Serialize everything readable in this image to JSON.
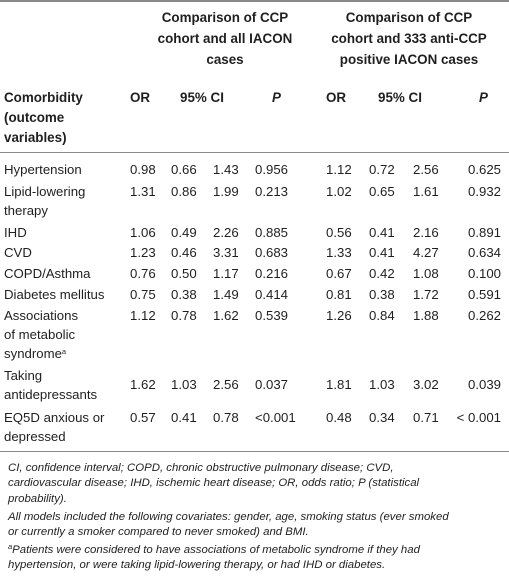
{
  "group_headers": {
    "left": [
      "Comparison of CCP",
      "cohort and all IACON",
      "cases"
    ],
    "right": [
      "Comparison of CCP",
      "cohort and 333 anti-CCP",
      "positive IACON cases"
    ]
  },
  "column_headers": {
    "comorbidity": [
      "Comorbidity",
      "(outcome",
      "variables)"
    ],
    "or": "OR",
    "ci": "95% CI",
    "p": "P"
  },
  "rows": [
    {
      "label": [
        "Hypertension"
      ],
      "l": [
        "0.98",
        "0.66",
        "1.43",
        "0.956"
      ],
      "r": [
        "1.12",
        "0.72",
        "2.56",
        "0.625"
      ]
    },
    {
      "label": [
        "Lipid-lowering",
        "therapy"
      ],
      "l": [
        "1.31",
        "0.86",
        "1.99",
        "0.213"
      ],
      "r": [
        "1.02",
        "0.65",
        "1.61",
        "0.932"
      ]
    },
    {
      "label": [
        "IHD"
      ],
      "l": [
        "1.06",
        "0.49",
        "2.26",
        "0.885"
      ],
      "r": [
        "0.56",
        "0.41",
        "2.16",
        "0.891"
      ]
    },
    {
      "label": [
        "CVD"
      ],
      "l": [
        "1.23",
        "0.46",
        "3.31",
        "0.683"
      ],
      "r": [
        "1.33",
        "0.41",
        "4.27",
        "0.634"
      ]
    },
    {
      "label": [
        "COPD/Asthma"
      ],
      "l": [
        "0.76",
        "0.50",
        "1.17",
        "0.216"
      ],
      "r": [
        "0.67",
        "0.42",
        "1.08",
        "0.100"
      ]
    },
    {
      "label": [
        "Diabetes mellitus"
      ],
      "l": [
        "0.75",
        "0.38",
        "1.49",
        "0.414"
      ],
      "r": [
        "0.81",
        "0.38",
        "1.72",
        "0.591"
      ]
    },
    {
      "label": [
        "Associations",
        "of metabolic",
        "syndrome"
      ],
      "sup": "a",
      "l": [
        "1.12",
        "0.78",
        "1.62",
        "0.539"
      ],
      "r": [
        "1.26",
        "0.84",
        "1.88",
        "0.262"
      ]
    },
    {
      "label": [
        "Taking",
        "antidepressants"
      ],
      "l": [
        "1.62",
        "1.03",
        "2.56",
        "0.037"
      ],
      "r": [
        "1.81",
        "1.03",
        "3.02",
        "0.039"
      ]
    },
    {
      "label": [
        "EQ5D anxious or",
        "depressed"
      ],
      "l": [
        "0.57",
        "0.41",
        "0.78",
        "<0.001"
      ],
      "r": [
        "0.48",
        "0.34",
        "0.71",
        "< 0.001"
      ]
    }
  ],
  "footnotes": {
    "abbrev": [
      "CI, confidence interval; COPD, chronic obstructive pulmonary disease; CVD,",
      "cardiovascular disease; IHD, ischemic heart disease; OR, odds ratio; P (statistical",
      "probability)."
    ],
    "covariates": [
      "All models included the following covariates: gender, age, smoking status (ever smoked",
      "or currently a smoker compared to never smoked) and BMI."
    ],
    "a_mark": "a",
    "a_note": [
      "Patients were considered to have associations of metabolic syndrome if they had",
      "hypertension, or were taking lipid-lowering therapy, or had IHD or diabetes."
    ]
  }
}
